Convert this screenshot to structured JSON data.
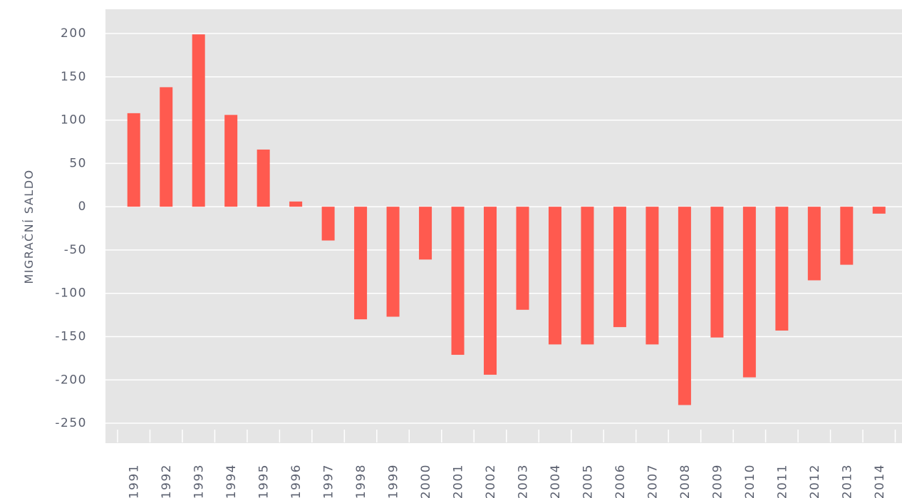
{
  "chart_data": {
    "type": "bar",
    "y_label": "MIGRAČNÍ SALDO",
    "categories": [
      "1991",
      "1992",
      "1993",
      "1994",
      "1995",
      "1996",
      "1997",
      "1998",
      "1999",
      "2000",
      "2001",
      "2002",
      "2003",
      "2004",
      "2005",
      "2006",
      "2007",
      "2008",
      "2009",
      "2010",
      "2011",
      "2012",
      "2013",
      "2014"
    ],
    "values": [
      108,
      138,
      199,
      106,
      66,
      6,
      -39,
      -130,
      -127,
      -61,
      -171,
      -194,
      -119,
      -159,
      -159,
      -139,
      -159,
      -229,
      -151,
      -197,
      -143,
      -85,
      -67,
      -8
    ],
    "color": "#ff5a4f",
    "ylim": [
      -273,
      228
    ],
    "yticks": [
      -250,
      -200,
      -150,
      -100,
      -50,
      0,
      50,
      100,
      150,
      200
    ],
    "grid": true
  }
}
